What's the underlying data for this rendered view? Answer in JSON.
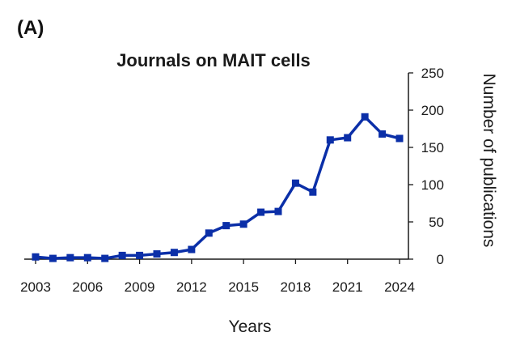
{
  "panel_label": "(A)",
  "chart_data": {
    "type": "line",
    "title": "Journals on MAIT cells",
    "xlabel": "Years",
    "ylabel": "Number of publications",
    "y_axis_position": "right",
    "x": [
      2003,
      2004,
      2005,
      2006,
      2007,
      2008,
      2009,
      2010,
      2011,
      2012,
      2013,
      2014,
      2015,
      2016,
      2017,
      2018,
      2019,
      2020,
      2021,
      2022,
      2023,
      2024
    ],
    "series": [
      {
        "name": "",
        "color": "#0b2fa8",
        "marker": "square",
        "values": [
          3,
          1,
          2,
          2,
          1,
          5,
          5,
          7,
          9,
          13,
          35,
          45,
          47,
          63,
          64,
          102,
          90,
          160,
          163,
          191,
          168,
          162
        ]
      }
    ],
    "xticks": [
      2003,
      2006,
      2009,
      2012,
      2015,
      2018,
      2021,
      2024
    ],
    "yticks": [
      0,
      50,
      100,
      150,
      200,
      250
    ],
    "xlim": [
      2003,
      2024
    ],
    "ylim": [
      0,
      250
    ],
    "grid": false
  }
}
